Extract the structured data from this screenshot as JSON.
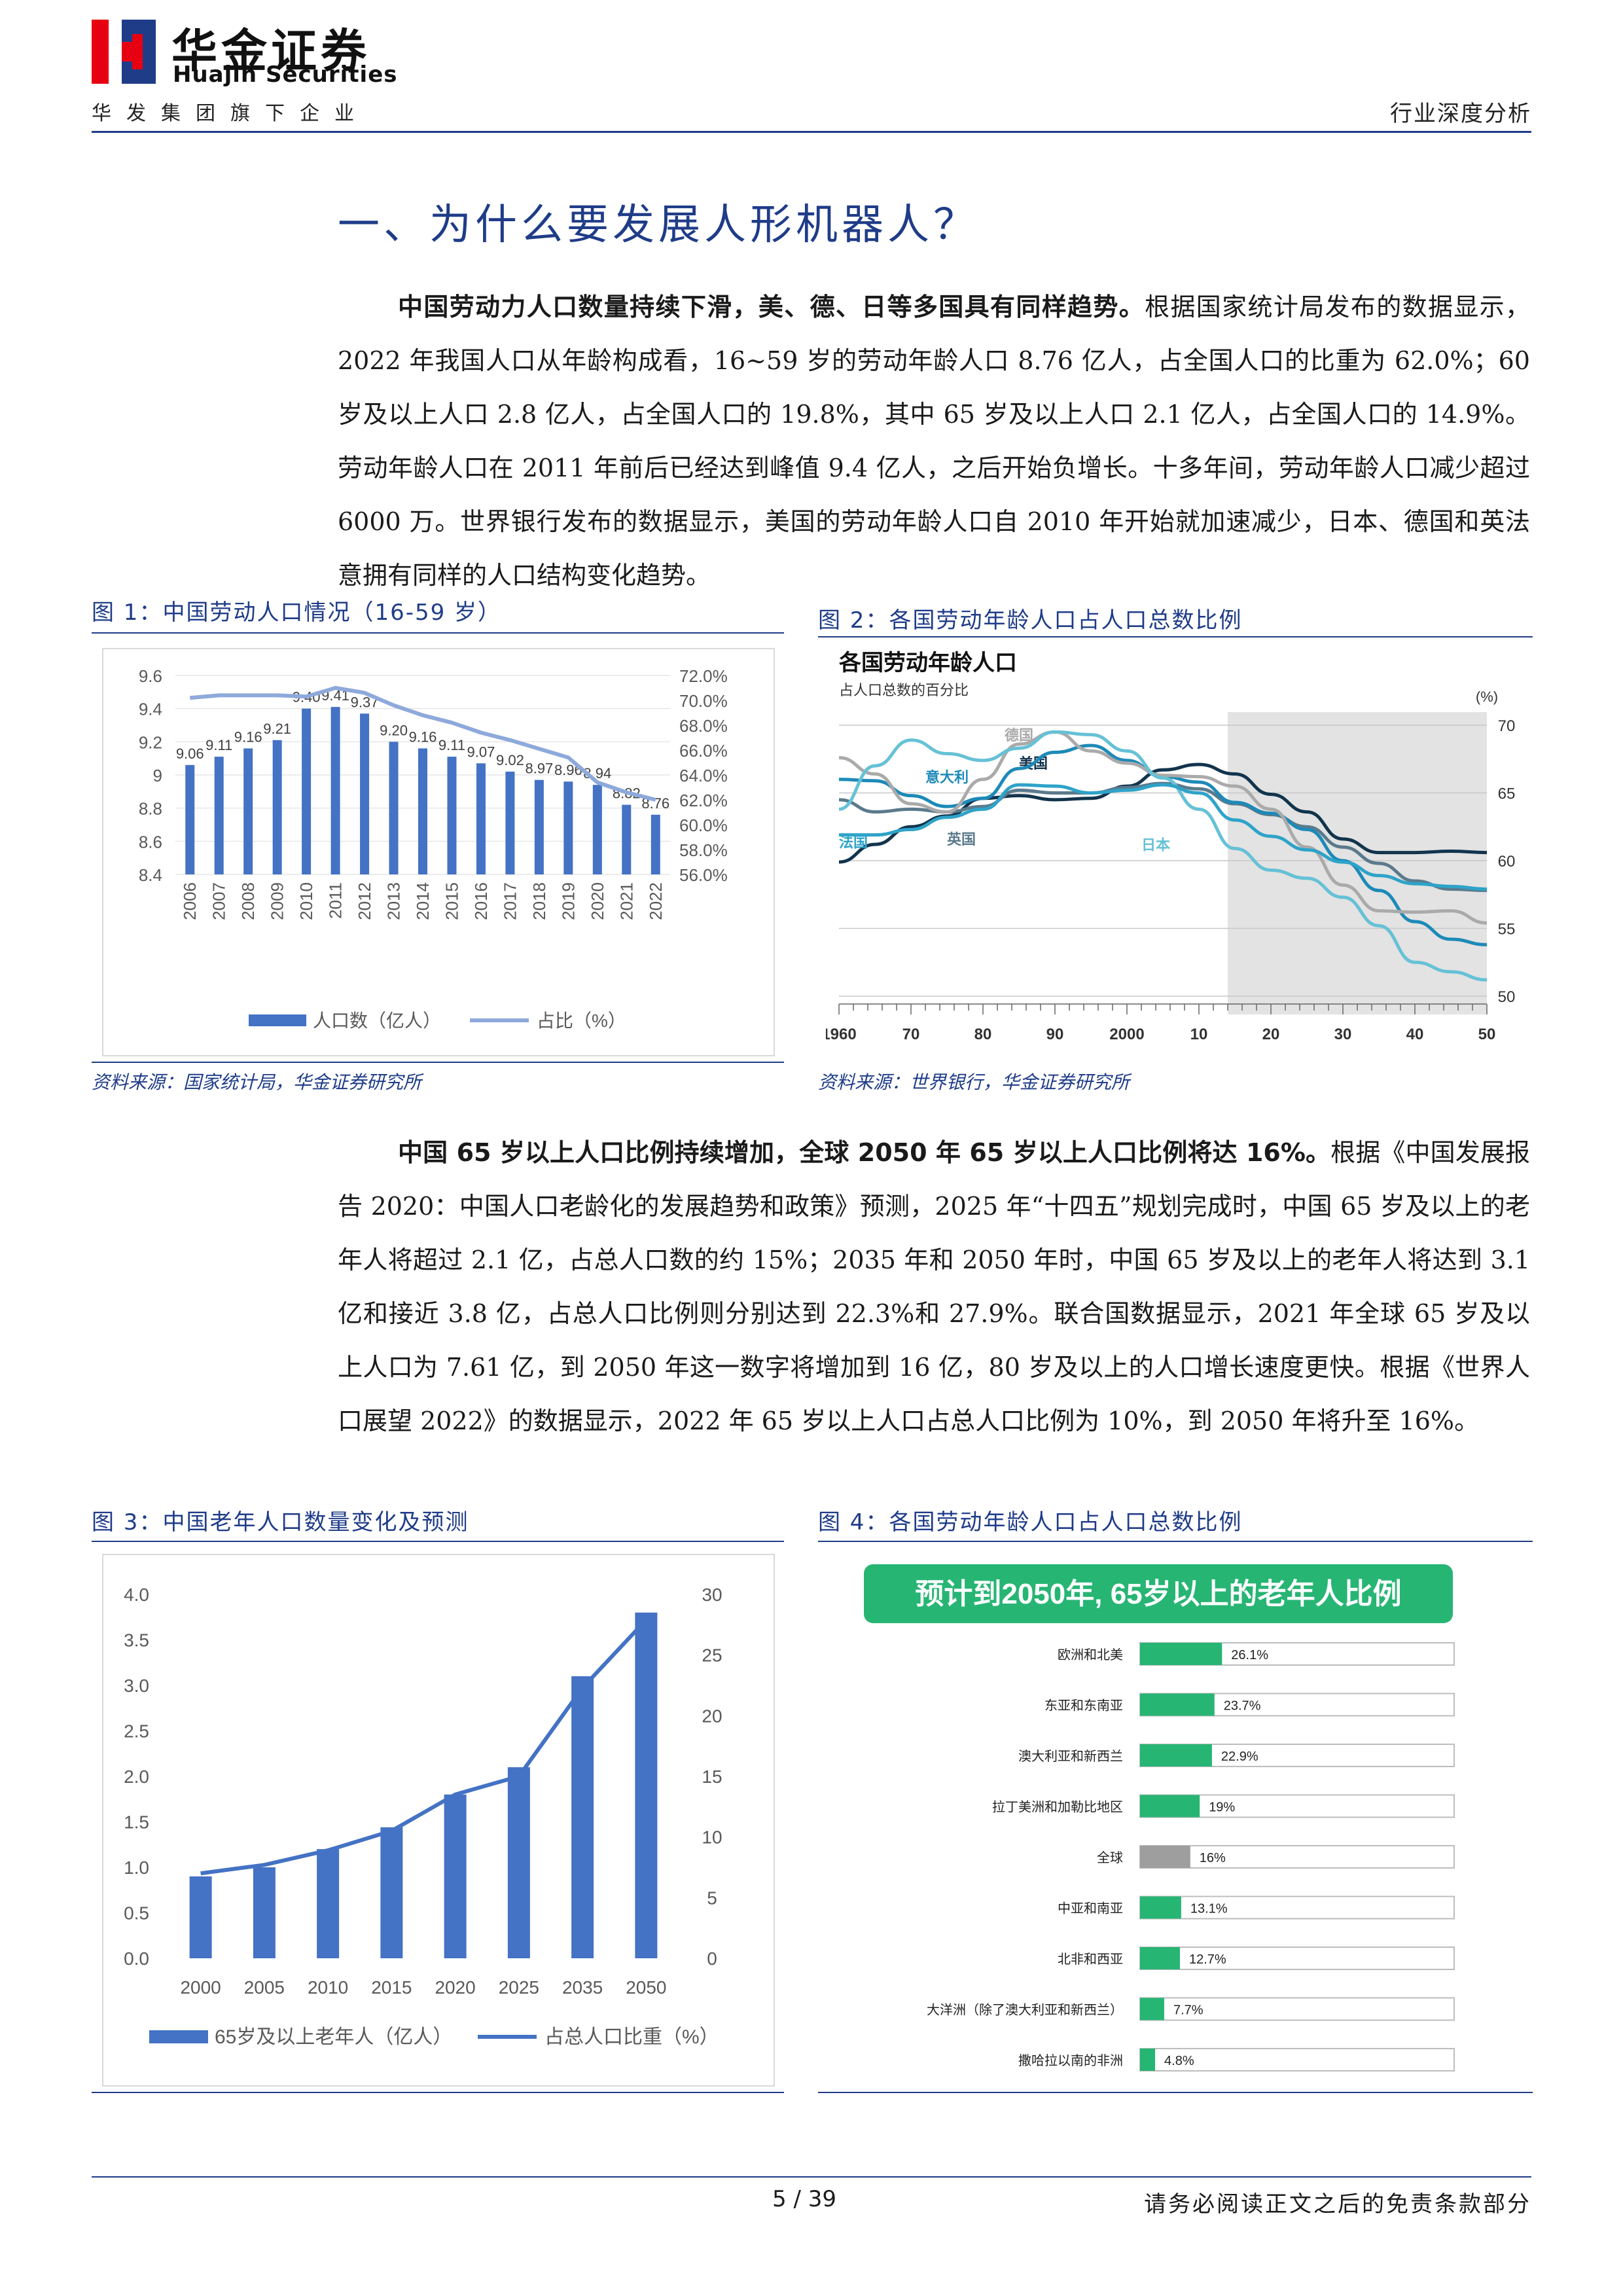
{
  "header": {
    "brand_cn": "华金证券",
    "brand_en": "Huajin Securities",
    "group": "华发集团旗下企业",
    "doc_type": "行业深度分析"
  },
  "section_title": "一、为什么要发展人形机器人？",
  "paragraph1": {
    "lead": "中国劳动力人口数量持续下滑，美、德、日等多国具有同样趋势。",
    "body": "根据国家统计局发布的数据显示，2022 年我国人口从年龄构成看，16~59 岁的劳动年龄人口 8.76 亿人，占全国人口的比重为 62.0%；60 岁及以上人口 2.8 亿人，占全国人口的 19.8%，其中 65 岁及以上人口 2.1 亿人，占全国人口的 14.9%。劳动年龄人口在 2011 年前后已经达到峰值 9.4 亿人，之后开始负增长。十多年间，劳动年龄人口减少超过 6000 万。世界银行发布的数据显示，美国的劳动年龄人口自 2010 年开始就加速减少，日本、德国和英法意拥有同样的人口结构变化趋势。"
  },
  "paragraph2": {
    "lead": "中国 65 岁以上人口比例持续增加，全球 2050 年 65 岁以上人口比例将达 16%。",
    "body": "根据《中国发展报告 2020：中国人口老龄化的发展趋势和政策》预测，2025 年“十四五”规划完成时，中国 65 岁及以上的老年人将超过 2.1 亿，占总人口数的约 15%；2035 年和 2050 年时，中国 65 岁及以上的老年人将达到 3.1 亿和接近 3.8 亿，占总人口比例则分别达到 22.3%和 27.9%。联合国数据显示，2021 年全球 65 岁及以上人口为 7.61 亿，到 2050 年这一数字将增加到 16 亿，80 岁及以上的人口增长速度更快。根据《世界人口展望 2022》的数据显示，2022 年 65 岁以上人口占总人口比例为 10%，到 2050 年将升至 16%。"
  },
  "figures": {
    "fig1_title": "图 1：中国劳动人口情况（16-59 岁）",
    "fig1_source": "资料来源：国家统计局，华金证券研究所",
    "fig2_title": "图 2：各国劳动年龄人口占人口总数比例",
    "fig2_source": "资料来源：世界银行，华金证券研究所",
    "fig3_title": "图 3：中国老年人口数量变化及预测",
    "fig4_title": "图 4：各国劳动年龄人口占人口总数比例"
  },
  "footer": {
    "page": "5 / 39",
    "disclaimer": "请务必阅读正文之后的免责条款部分"
  },
  "colors": {
    "brand_blue": "#1f3c88",
    "bar_blue": "#4472c4",
    "line_light": "#8ea9db",
    "logo_red": "#e60012",
    "green": "#27b574"
  },
  "chart_data": [
    {
      "id": "fig1",
      "type": "bar",
      "categories": [
        "2006",
        "2007",
        "2008",
        "2009",
        "2010",
        "2011",
        "2012",
        "2013",
        "2014",
        "2015",
        "2016",
        "2017",
        "2018",
        "2019",
        "2020",
        "2021",
        "2022"
      ],
      "series": [
        {
          "name": "人口数（亿人）",
          "type": "bar",
          "axis": "left",
          "values": [
            9.06,
            9.11,
            9.16,
            9.21,
            9.4,
            9.41,
            9.37,
            9.2,
            9.16,
            9.11,
            9.07,
            9.02,
            8.97,
            8.96,
            8.94,
            8.82,
            8.76
          ]
        },
        {
          "name": "占比（%）",
          "type": "line",
          "axis": "right",
          "values": [
            70.2,
            70.4,
            70.4,
            70.4,
            70.3,
            71.0,
            70.6,
            69.6,
            68.8,
            68.2,
            67.4,
            66.8,
            66.1,
            65.4,
            63.4,
            62.6,
            62.0
          ]
        }
      ],
      "ylim": [
        8.4,
        9.6
      ],
      "yticks": [
        "9.6",
        "9.4",
        "9.2",
        "9",
        "8.8",
        "8.6",
        "8.4"
      ],
      "y2lim": [
        56,
        72
      ],
      "y2ticks": [
        "72.0%",
        "70.0%",
        "68.0%",
        "66.0%",
        "64.0%",
        "62.0%",
        "60.0%",
        "58.0%",
        "56.0%"
      ],
      "legend": "bottom"
    },
    {
      "id": "fig2",
      "type": "line",
      "title": "各国劳动年龄人口",
      "subtitle": "占人口总数的百分比",
      "y_unit": "(%)",
      "ylim": [
        50,
        70
      ],
      "yticks": [
        "70",
        "65",
        "60",
        "55",
        "50"
      ],
      "xlim": [
        1960,
        2050
      ],
      "xticks": [
        "1960",
        "70",
        "80",
        "90",
        "2000",
        "10",
        "20",
        "30",
        "40",
        "50"
      ],
      "shaded_from": 2014,
      "x": [
        1960,
        1965,
        1970,
        1975,
        1980,
        1985,
        1990,
        1995,
        2000,
        2005,
        2010,
        2015,
        2020,
        2025,
        2030,
        2035,
        2040,
        2045,
        2050
      ],
      "series": [
        {
          "name": "美国",
          "color": "#12344d",
          "values": [
            59.9,
            61.2,
            62.5,
            63.3,
            64.6,
            64.8,
            64.5,
            64.6,
            65.5,
            66.7,
            67.1,
            66.4,
            64.9,
            63.6,
            61.6,
            60.6,
            60.6,
            60.7,
            60.6
          ]
        },
        {
          "name": "英国",
          "color": "#5b7a8c",
          "values": [
            64.5,
            63.6,
            63.8,
            63.6,
            64.0,
            65.2,
            65.0,
            65.0,
            65.4,
            65.7,
            65.3,
            64.2,
            63.4,
            62.5,
            61.0,
            59.8,
            58.5,
            57.9,
            57.8
          ]
        },
        {
          "name": "意大利",
          "color": "#1d8ab8",
          "values": [
            66.0,
            65.9,
            64.8,
            64.0,
            64.6,
            66.8,
            68.0,
            68.5,
            67.4,
            66.2,
            65.8,
            64.3,
            63.5,
            62.3,
            60.0,
            57.8,
            55.5,
            54.2,
            53.8
          ]
        },
        {
          "name": "德国",
          "color": "#aaaaaa",
          "values": [
            67.6,
            66.4,
            64.2,
            63.6,
            66.0,
            68.6,
            69.5,
            68.1,
            67.2,
            66.3,
            66.2,
            65.5,
            63.8,
            61.0,
            58.2,
            56.3,
            56.2,
            56.3,
            55.4
          ]
        },
        {
          "name": "日本",
          "color": "#66c1d6",
          "values": [
            63.8,
            67.0,
            68.9,
            67.9,
            67.4,
            68.3,
            69.5,
            69.3,
            68.1,
            66.1,
            63.8,
            60.9,
            59.3,
            58.7,
            57.3,
            55.2,
            52.5,
            51.8,
            51.2
          ]
        },
        {
          "name": "法国",
          "color": "#2ea3c9",
          "values": [
            61.9,
            61.9,
            62.3,
            63.2,
            63.8,
            65.6,
            65.5,
            65.0,
            65.2,
            65.6,
            65.0,
            63.0,
            61.8,
            60.8,
            59.9,
            58.9,
            58.3,
            58.1,
            57.9
          ]
        }
      ]
    },
    {
      "id": "fig3",
      "type": "bar",
      "categories": [
        "2000",
        "2005",
        "2010",
        "2015",
        "2020",
        "2025",
        "2035",
        "2050"
      ],
      "series": [
        {
          "name": "65岁及以上老年人（亿人）",
          "type": "bar",
          "axis": "left",
          "values": [
            0.9,
            1.0,
            1.2,
            1.44,
            1.8,
            2.1,
            3.1,
            3.8
          ]
        },
        {
          "name": "占总人口比重（%）",
          "type": "line",
          "axis": "right",
          "values": [
            7.0,
            7.7,
            8.9,
            10.5,
            13.5,
            15.0,
            22.3,
            27.9
          ]
        }
      ],
      "ylim": [
        0,
        4.0
      ],
      "yticks": [
        "4.0",
        "3.5",
        "3.0",
        "2.5",
        "2.0",
        "1.5",
        "1.0",
        "0.5",
        "0.0"
      ],
      "y2lim": [
        0,
        30
      ],
      "y2ticks": [
        "30",
        "25",
        "20",
        "15",
        "10",
        "5",
        "0"
      ],
      "legend": "bottom"
    },
    {
      "id": "fig4",
      "type": "bar",
      "orientation": "horizontal",
      "title": "预计到2050年, 65岁以上的老年人比例",
      "categories": [
        "欧洲和北美",
        "东亚和东南亚",
        "澳大利亚和新西兰",
        "拉丁美洲和加勒比地区",
        "全球",
        "中亚和南亚",
        "北非和西亚",
        "大洋洲（除了澳大利亚和新西兰）",
        "撒哈拉以南的非洲"
      ],
      "values": [
        26.1,
        23.7,
        22.9,
        19,
        16,
        13.1,
        12.7,
        7.7,
        4.8
      ],
      "labels": [
        "26.1%",
        "23.7%",
        "22.9%",
        "19%",
        "16%",
        "13.1%",
        "12.7%",
        "7.7%",
        "4.8%"
      ],
      "highlight": "全球",
      "xlim": [
        0,
        100
      ]
    }
  ]
}
